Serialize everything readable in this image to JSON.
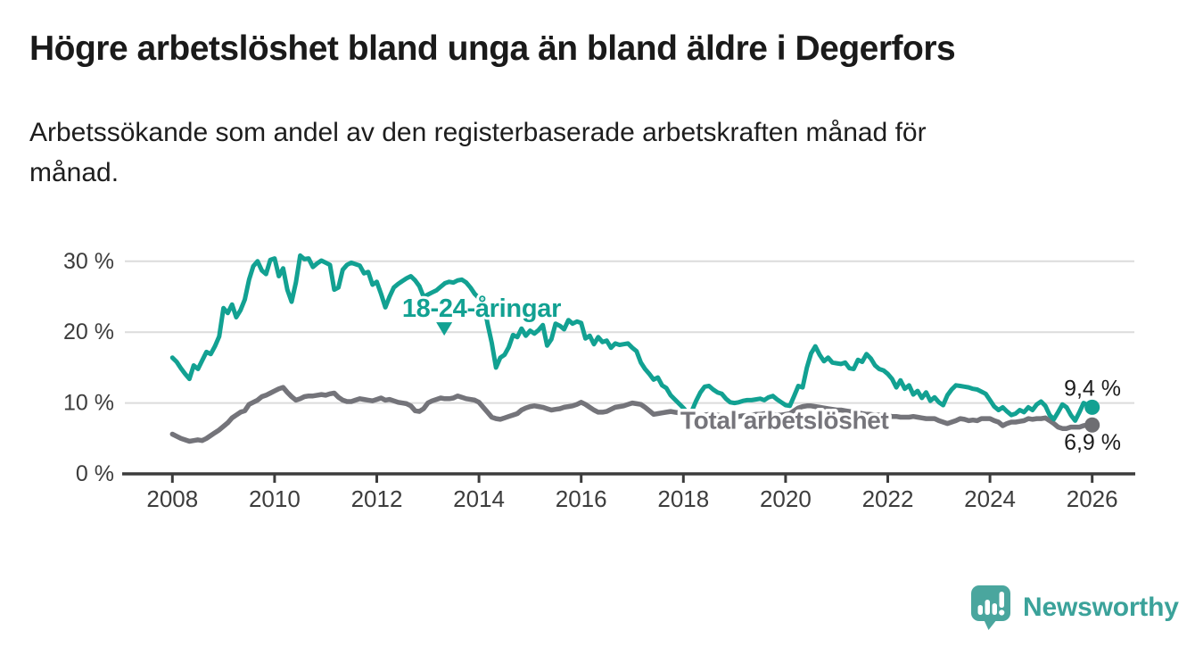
{
  "header": {
    "title": "Högre arbetslöshet bland unga än bland äldre i Degerfors",
    "subtitle": "Arbetssökande som andel av den registerbaserade arbetskraften månad för månad."
  },
  "colors": {
    "accent_teal": "#12a192",
    "line_gray": "#74747a",
    "dot_gray": "#6e6e72",
    "label_gray": "#76757b",
    "title_text": "#1a1a1a",
    "axis_text": "#3d3d3d",
    "axis_line": "#3c3c3c",
    "gridline": "#dcdcdc",
    "background": "#ffffff",
    "value_label_text": "#1c1c1c",
    "logo_teal": "#3ba29a",
    "logo_bubble": "#4aa69e"
  },
  "chart_data": {
    "type": "line",
    "unit": "%",
    "x_start": 2008.0,
    "x_step_months": 1,
    "x_end": 2026.0,
    "xticks": [
      2008,
      2010,
      2012,
      2014,
      2016,
      2018,
      2020,
      2022,
      2024,
      2026
    ],
    "xtick_labels": [
      "2008",
      "2010",
      "2012",
      "2014",
      "2016",
      "2018",
      "2020",
      "2022",
      "2024",
      "2026"
    ],
    "yticks": [
      0,
      10,
      20,
      30
    ],
    "ytick_labels": [
      "0 %",
      "10 %",
      "20 %",
      "30 %"
    ],
    "ylim": [
      0,
      32
    ],
    "grid": "horizontal",
    "legend_position": "inline-labels",
    "series": [
      {
        "name": "18-24-åringar",
        "color": "#12a192",
        "values": [
          16.4,
          15.8,
          14.9,
          14.1,
          13.4,
          15.3,
          14.8,
          16.0,
          17.2,
          16.9,
          18.0,
          19.4,
          23.4,
          22.7,
          23.9,
          22.1,
          23.1,
          24.6,
          27.4,
          29.3,
          30.0,
          28.7,
          28.2,
          30.2,
          30.4,
          27.9,
          29.0,
          26.0,
          24.3,
          27.0,
          30.8,
          30.3,
          30.4,
          29.2,
          29.7,
          30.1,
          29.8,
          29.5,
          26.0,
          26.3,
          28.8,
          29.5,
          29.8,
          29.6,
          29.4,
          28.3,
          28.5,
          26.7,
          27.1,
          25.4,
          23.5,
          25.0,
          26.3,
          26.8,
          27.2,
          27.6,
          27.9,
          27.3,
          26.5,
          25.0,
          25.3,
          25.6,
          25.9,
          26.4,
          26.9,
          27.1,
          27.0,
          27.3,
          27.4,
          27.0,
          26.3,
          25.4,
          24.8,
          24.4,
          21.2,
          18.5,
          15.0,
          16.4,
          16.8,
          17.9,
          19.6,
          19.3,
          20.5,
          19.5,
          20.2,
          19.8,
          20.3,
          21.0,
          18.1,
          19.0,
          21.2,
          20.9,
          20.4,
          21.7,
          21.2,
          21.5,
          21.3,
          19.1,
          19.5,
          18.3,
          19.3,
          18.6,
          18.8,
          17.8,
          18.4,
          18.2,
          18.3,
          18.4,
          17.8,
          17.3,
          15.7,
          14.8,
          14.1,
          13.3,
          13.6,
          12.5,
          12.1,
          11.1,
          10.5,
          9.9,
          9.3,
          8.6,
          8.9,
          10.3,
          11.5,
          12.3,
          12.4,
          11.9,
          11.5,
          11.3,
          10.6,
          10.1,
          10.0,
          10.1,
          10.3,
          10.4,
          10.4,
          10.5,
          10.6,
          10.4,
          10.8,
          11.0,
          10.5,
          10.1,
          9.7,
          9.6,
          11.0,
          12.4,
          12.2,
          15.0,
          17.0,
          18.0,
          16.8,
          15.9,
          16.4,
          15.7,
          15.6,
          15.5,
          15.7,
          14.9,
          14.8,
          16.1,
          15.8,
          16.9,
          16.3,
          15.3,
          14.8,
          14.6,
          14.1,
          13.4,
          12.2,
          13.2,
          12.0,
          12.5,
          11.2,
          11.7,
          10.7,
          11.5,
          10.3,
          10.8,
          10.1,
          9.7,
          11.1,
          11.9,
          12.5,
          12.4,
          12.3,
          12.2,
          12.0,
          11.9,
          11.6,
          11.3,
          10.4,
          9.5,
          9.0,
          9.4,
          8.8,
          8.3,
          8.5,
          9.0,
          8.7,
          9.4,
          9.0,
          9.8,
          10.2,
          9.6,
          8.3,
          7.7,
          8.7,
          9.8,
          9.4,
          8.3,
          7.5,
          8.7,
          10.0,
          9.7,
          9.4
        ]
      },
      {
        "name": "Total arbetslöshet",
        "color": "#74747a",
        "values": [
          5.6,
          5.3,
          5.0,
          4.8,
          4.6,
          4.7,
          4.8,
          4.7,
          5.0,
          5.4,
          5.8,
          6.2,
          6.7,
          7.2,
          7.9,
          8.3,
          8.7,
          8.9,
          9.8,
          10.1,
          10.4,
          10.9,
          11.1,
          11.4,
          11.7,
          12.0,
          12.2,
          11.5,
          10.9,
          10.4,
          10.6,
          10.9,
          11.0,
          11.0,
          11.1,
          11.2,
          11.1,
          11.3,
          11.4,
          10.8,
          10.4,
          10.2,
          10.2,
          10.4,
          10.6,
          10.5,
          10.4,
          10.3,
          10.5,
          10.7,
          10.4,
          10.5,
          10.3,
          10.1,
          10.0,
          9.9,
          9.6,
          8.9,
          8.8,
          9.2,
          10.0,
          10.3,
          10.5,
          10.7,
          10.6,
          10.6,
          10.7,
          11.0,
          10.8,
          10.6,
          10.5,
          10.4,
          10.1,
          9.4,
          8.7,
          8.0,
          7.8,
          7.7,
          7.9,
          8.1,
          8.3,
          8.5,
          9.0,
          9.3,
          9.5,
          9.6,
          9.5,
          9.4,
          9.2,
          9.0,
          9.1,
          9.2,
          9.4,
          9.5,
          9.6,
          9.8,
          10.1,
          9.8,
          9.4,
          9.0,
          8.7,
          8.7,
          8.8,
          9.1,
          9.4,
          9.5,
          9.6,
          9.8,
          10.0,
          9.9,
          9.8,
          9.4,
          8.9,
          8.4,
          8.5,
          8.6,
          8.7,
          8.8,
          8.7,
          8.6,
          8.4,
          8.3,
          8.2,
          8.1,
          8.2,
          8.3,
          8.4,
          8.4,
          8.3,
          8.2,
          8.1,
          8.0,
          8.0,
          8.1,
          8.2,
          8.2,
          8.3,
          8.4,
          8.4,
          8.5,
          8.5,
          8.4,
          8.3,
          8.3,
          8.4,
          8.5,
          8.9,
          9.3,
          9.5,
          9.6,
          9.6,
          9.5,
          9.4,
          9.3,
          9.2,
          9.1,
          9.0,
          9.0,
          8.9,
          8.8,
          8.7,
          8.6,
          8.5,
          8.4,
          8.4,
          8.3,
          8.3,
          8.2,
          8.2,
          8.1,
          8.1,
          8.0,
          8.0,
          8.0,
          8.1,
          8.0,
          7.9,
          7.8,
          7.8,
          7.8,
          7.5,
          7.3,
          7.1,
          7.3,
          7.5,
          7.8,
          7.7,
          7.5,
          7.6,
          7.5,
          7.8,
          7.8,
          7.8,
          7.5,
          7.3,
          6.8,
          7.1,
          7.3,
          7.3,
          7.4,
          7.5,
          7.8,
          7.7,
          7.8,
          7.8,
          7.9,
          7.5,
          7.1,
          6.6,
          6.4,
          6.4,
          6.6,
          6.6,
          6.6,
          6.8,
          6.9,
          6.9
        ]
      }
    ],
    "annotations": {
      "youth_label": {
        "text": "18-24-åringar",
        "x": 2014.05,
        "y": 23.3
      },
      "youth_pointer": {
        "x": 2013.32,
        "y_top": 21.4,
        "y_tip": 19.5
      },
      "total_label": {
        "text": "Total arbetslöshet",
        "x": 2019.98,
        "y": 7.56
      },
      "end_labels": [
        {
          "text": "9,4 %",
          "value": 9.4
        },
        {
          "text": "6,9 %",
          "value": 6.9
        }
      ]
    }
  },
  "footer": {
    "logo_text": "Newsworthy"
  }
}
